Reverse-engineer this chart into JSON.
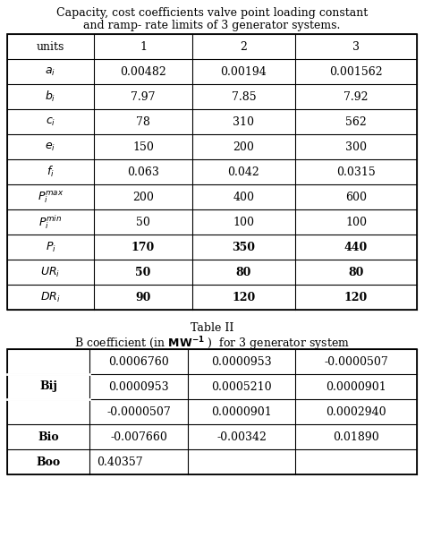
{
  "title1_line1": "Capacity, cost coefficients valve point loading constant",
  "title1_line2": "and ramp- rate limits of 3 generator systems.",
  "table1_headers": [
    "units",
    "1",
    "2",
    "3"
  ],
  "table1_row_labels": [
    "a_i",
    "b_i",
    "c_i",
    "e_i",
    "f_i",
    "P_i^max",
    "P_i^min",
    "P_i",
    "UR_i",
    "DR_i"
  ],
  "table1_row_labels_math": [
    "$a_i$",
    "$b_i$",
    "$c_i$",
    "$e_i$",
    "$f_i$",
    "$P_i^{max}$",
    "$P_i^{min}$",
    "$P_i$",
    "$UR_i$",
    "$DR_i$"
  ],
  "table1_bold_rows": [
    7,
    8,
    9
  ],
  "table1_data": [
    [
      "0.00482",
      "0.00194",
      "0.001562"
    ],
    [
      "7.97",
      "7.85",
      "7.92"
    ],
    [
      "78",
      "310",
      "562"
    ],
    [
      "150",
      "200",
      "300"
    ],
    [
      "0.063",
      "0.042",
      "0.0315"
    ],
    [
      "200",
      "400",
      "600"
    ],
    [
      "50",
      "100",
      "100"
    ],
    [
      "170",
      "350",
      "440"
    ],
    [
      "50",
      "80",
      "80"
    ],
    [
      "90",
      "120",
      "120"
    ]
  ],
  "title2_line1": "Table II",
  "title2_line2": "B coefficient (in $\\mathbf{MW^{-1}}$ )  for 3 generator system",
  "table2_row_labels": [
    "Bij",
    "Bio",
    "Boo"
  ],
  "table2_bij_data": [
    [
      "0.0006760",
      "0.0000953",
      "-0.0000507"
    ],
    [
      "0.0000953",
      "0.0005210",
      "0.0000901"
    ],
    [
      "-0.0000507",
      "0.0000901",
      "0.0002940"
    ]
  ],
  "table2_bio_data": [
    "-0.007660",
    "-0.00342",
    "0.01890"
  ],
  "table2_boo_data": "0.40357",
  "bg_color": "#ffffff",
  "text_color": "#000000"
}
